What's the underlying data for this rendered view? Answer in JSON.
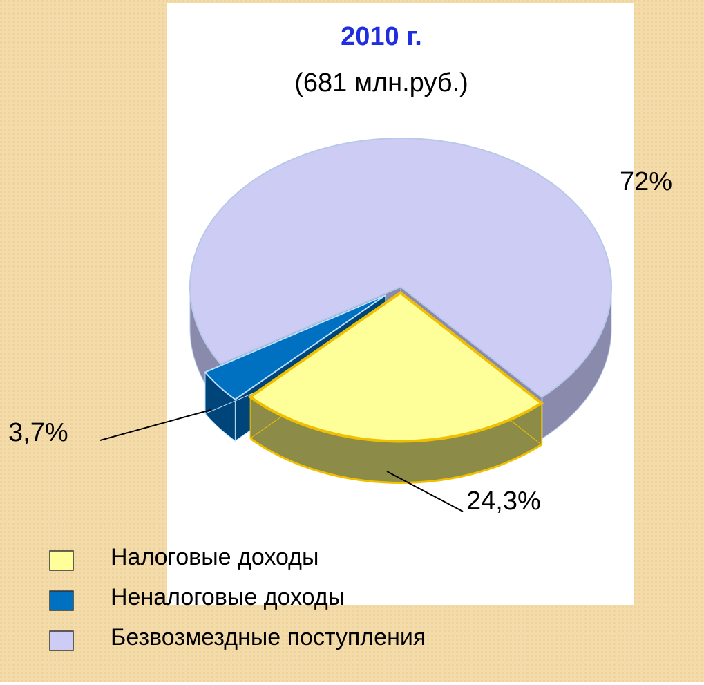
{
  "chart_data": {
    "type": "pie",
    "title": "2010 г.",
    "subtitle": "(681 млн.руб.)",
    "categories": [
      "Налоговые доходы",
      "Неналоговые доходы",
      "Безвозмездные поступления"
    ],
    "values": [
      24.3,
      3.7,
      72
    ],
    "value_labels": [
      "24,3%",
      "3,7%",
      "72%"
    ],
    "colors": [
      "#ffff99",
      "#0070c0",
      "#ccccf5"
    ]
  }
}
